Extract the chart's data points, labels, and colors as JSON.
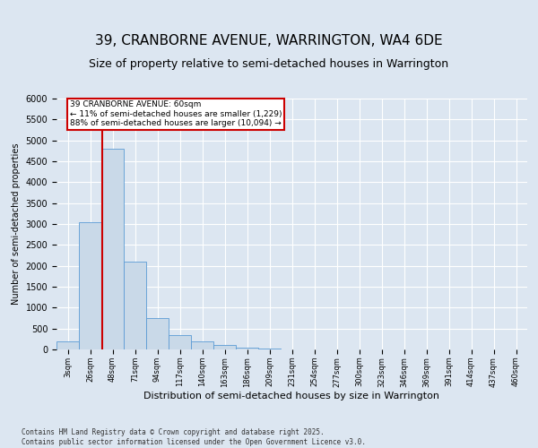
{
  "title": "39, CRANBORNE AVENUE, WARRINGTON, WA4 6DE",
  "subtitle": "Size of property relative to semi-detached houses in Warrington",
  "xlabel": "Distribution of semi-detached houses by size in Warrington",
  "ylabel": "Number of semi-detached properties",
  "footnote": "Contains HM Land Registry data © Crown copyright and database right 2025.\nContains public sector information licensed under the Open Government Licence v3.0.",
  "categories": [
    "3sqm",
    "26sqm",
    "48sqm",
    "71sqm",
    "94sqm",
    "117sqm",
    "140sqm",
    "163sqm",
    "186sqm",
    "209sqm",
    "231sqm",
    "254sqm",
    "277sqm",
    "300sqm",
    "323sqm",
    "346sqm",
    "369sqm",
    "391sqm",
    "414sqm",
    "437sqm",
    "460sqm"
  ],
  "bar_values": [
    200,
    3050,
    4800,
    2100,
    750,
    350,
    200,
    100,
    50,
    20,
    10,
    5,
    2,
    1,
    0,
    0,
    0,
    0,
    0,
    0,
    0
  ],
  "bar_color": "#c9d9e8",
  "bar_edge_color": "#5b9bd5",
  "annotation_text": "39 CRANBORNE AVENUE: 60sqm\n← 11% of semi-detached houses are smaller (1,229)\n88% of semi-detached houses are larger (10,094) →",
  "annotation_box_color": "#cc0000",
  "ylim": [
    0,
    6000
  ],
  "yticks": [
    0,
    500,
    1000,
    1500,
    2000,
    2500,
    3000,
    3500,
    4000,
    4500,
    5000,
    5500,
    6000
  ],
  "background_color": "#dce6f1",
  "plot_background": "#dce6f1",
  "title_fontsize": 11,
  "subtitle_fontsize": 9,
  "grid_color": "#ffffff",
  "vline_color": "#cc0000",
  "vline_x_index": 1.55
}
